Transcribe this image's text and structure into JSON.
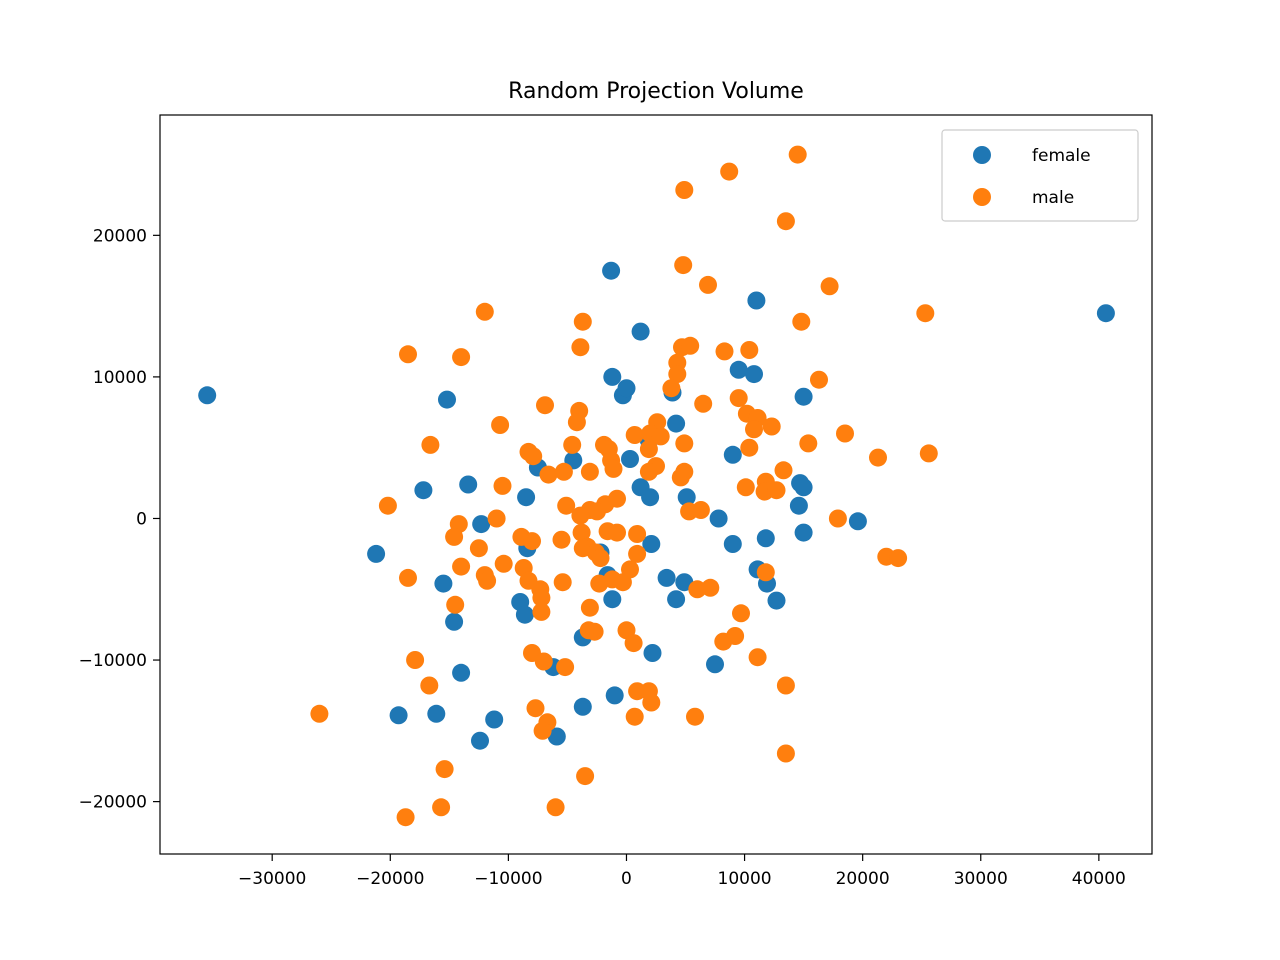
{
  "chart_data": {
    "type": "scatter",
    "title": "Random Projection Volume",
    "xlabel": "",
    "ylabel": "",
    "xlim": [
      -39500,
      44500
    ],
    "ylim": [
      -23700,
      28500
    ],
    "xticks": [
      -30000,
      -20000,
      -10000,
      0,
      10000,
      20000,
      30000,
      40000
    ],
    "xtick_labels": [
      "−30000",
      "−20000",
      "−10000",
      "0",
      "10000",
      "20000",
      "30000",
      "40000"
    ],
    "yticks": [
      -20000,
      -10000,
      0,
      10000,
      20000
    ],
    "ytick_labels": [
      "−20000",
      "−10000",
      "0",
      "10000",
      "20000"
    ],
    "grid": false,
    "legend_position": "top-right",
    "series": [
      {
        "name": "female",
        "color": "#1f77b4",
        "points": [
          [
            -35500,
            8700
          ],
          [
            40600,
            14500
          ],
          [
            -1300,
            17500
          ],
          [
            11000,
            15400
          ],
          [
            1200,
            13200
          ],
          [
            -1200,
            10000
          ],
          [
            -300,
            8700
          ],
          [
            0,
            9200
          ],
          [
            9500,
            10500
          ],
          [
            10800,
            10200
          ],
          [
            -15200,
            8400
          ],
          [
            15000,
            8600
          ],
          [
            4200,
            6700
          ],
          [
            3900,
            8900
          ],
          [
            -4500,
            4100
          ],
          [
            300,
            4200
          ],
          [
            -7500,
            3600
          ],
          [
            1900,
            5500
          ],
          [
            9000,
            4500
          ],
          [
            -13400,
            2400
          ],
          [
            -17200,
            2000
          ],
          [
            -8500,
            1500
          ],
          [
            1200,
            2200
          ],
          [
            2000,
            1500
          ],
          [
            5100,
            1500
          ],
          [
            14700,
            2500
          ],
          [
            15000,
            2200
          ],
          [
            14600,
            900
          ],
          [
            7800,
            0
          ],
          [
            19600,
            -200
          ],
          [
            -12300,
            -400
          ],
          [
            15000,
            -1000
          ],
          [
            11800,
            -1400
          ],
          [
            9000,
            -1800
          ],
          [
            2100,
            -1800
          ],
          [
            -21200,
            -2500
          ],
          [
            -8400,
            -2100
          ],
          [
            -2200,
            -2400
          ],
          [
            -1600,
            -4000
          ],
          [
            -15500,
            -4600
          ],
          [
            3400,
            -4200
          ],
          [
            4900,
            -4500
          ],
          [
            4200,
            -5700
          ],
          [
            -1200,
            -5700
          ],
          [
            11100,
            -3600
          ],
          [
            11900,
            -4600
          ],
          [
            12700,
            -5800
          ],
          [
            -9000,
            -5900
          ],
          [
            -8600,
            -6800
          ],
          [
            -14600,
            -7300
          ],
          [
            -3700,
            -8400
          ],
          [
            2200,
            -9500
          ],
          [
            7500,
            -10300
          ],
          [
            -6200,
            -10500
          ],
          [
            -14000,
            -10900
          ],
          [
            -1000,
            -12500
          ],
          [
            -3700,
            -13300
          ],
          [
            -16100,
            -13800
          ],
          [
            -19300,
            -13900
          ],
          [
            -11200,
            -14200
          ],
          [
            -12400,
            -15700
          ],
          [
            -5900,
            -15400
          ]
        ]
      },
      {
        "name": "male",
        "color": "#ff7f0e",
        "points": [
          [
            14500,
            25700
          ],
          [
            8700,
            24500
          ],
          [
            4900,
            23200
          ],
          [
            13500,
            21000
          ],
          [
            4800,
            17900
          ],
          [
            6900,
            16500
          ],
          [
            17200,
            16400
          ],
          [
            25300,
            14500
          ],
          [
            -12000,
            14600
          ],
          [
            -3700,
            13900
          ],
          [
            14800,
            13900
          ],
          [
            -3900,
            12100
          ],
          [
            4700,
            12100
          ],
          [
            5400,
            12200
          ],
          [
            8300,
            11800
          ],
          [
            10400,
            11900
          ],
          [
            -18500,
            11600
          ],
          [
            -14000,
            11400
          ],
          [
            4300,
            11000
          ],
          [
            4300,
            10200
          ],
          [
            16300,
            9800
          ],
          [
            3800,
            9200
          ],
          [
            9500,
            8500
          ],
          [
            6500,
            8100
          ],
          [
            -6900,
            8000
          ],
          [
            -4000,
            7600
          ],
          [
            10200,
            7400
          ],
          [
            11100,
            7100
          ],
          [
            -4200,
            6800
          ],
          [
            2600,
            6800
          ],
          [
            -10700,
            6600
          ],
          [
            12300,
            6500
          ],
          [
            10800,
            6300
          ],
          [
            2000,
            6000
          ],
          [
            700,
            5900
          ],
          [
            18500,
            6000
          ],
          [
            2900,
            5800
          ],
          [
            -16600,
            5200
          ],
          [
            -4600,
            5200
          ],
          [
            -1900,
            5200
          ],
          [
            -1500,
            4900
          ],
          [
            4900,
            5300
          ],
          [
            15400,
            5300
          ],
          [
            25600,
            4600
          ],
          [
            -8300,
            4700
          ],
          [
            -7900,
            4400
          ],
          [
            1900,
            4900
          ],
          [
            10400,
            5000
          ],
          [
            -1300,
            4100
          ],
          [
            21300,
            4300
          ],
          [
            2500,
            3700
          ],
          [
            -1100,
            3500
          ],
          [
            -6600,
            3100
          ],
          [
            -3100,
            3300
          ],
          [
            -5300,
            3300
          ],
          [
            1900,
            3300
          ],
          [
            13300,
            3400
          ],
          [
            4900,
            3300
          ],
          [
            11800,
            2600
          ],
          [
            4600,
            2900
          ],
          [
            -10500,
            2300
          ],
          [
            10100,
            2200
          ],
          [
            11700,
            1900
          ],
          [
            12700,
            2000
          ],
          [
            -800,
            1400
          ],
          [
            -20200,
            900
          ],
          [
            -5100,
            900
          ],
          [
            -1800,
            1000
          ],
          [
            -2500,
            500
          ],
          [
            -3100,
            600
          ],
          [
            -3900,
            200
          ],
          [
            5300,
            500
          ],
          [
            6300,
            600
          ],
          [
            17900,
            0
          ],
          [
            -11000,
            0
          ],
          [
            -14200,
            -400
          ],
          [
            -1600,
            -900
          ],
          [
            -3800,
            -1000
          ],
          [
            -8900,
            -1300
          ],
          [
            -14600,
            -1300
          ],
          [
            -800,
            -1000
          ],
          [
            900,
            -1100
          ],
          [
            -8000,
            -1600
          ],
          [
            -5500,
            -1500
          ],
          [
            -3300,
            -2000
          ],
          [
            -12500,
            -2100
          ],
          [
            -3700,
            -2100
          ],
          [
            -2600,
            -2400
          ],
          [
            -2200,
            -2800
          ],
          [
            900,
            -2500
          ],
          [
            22000,
            -2700
          ],
          [
            23000,
            -2800
          ],
          [
            -10400,
            -3200
          ],
          [
            -14000,
            -3400
          ],
          [
            300,
            -3600
          ],
          [
            -8700,
            -3500
          ],
          [
            -12000,
            -4000
          ],
          [
            11800,
            -3800
          ],
          [
            -18500,
            -4200
          ],
          [
            -11800,
            -4400
          ],
          [
            -8300,
            -4400
          ],
          [
            -5400,
            -4500
          ],
          [
            -2300,
            -4600
          ],
          [
            -1200,
            -4300
          ],
          [
            -300,
            -4500
          ],
          [
            -7300,
            -5000
          ],
          [
            6000,
            -5000
          ],
          [
            7100,
            -4900
          ],
          [
            -7200,
            -5600
          ],
          [
            -14500,
            -6100
          ],
          [
            -3100,
            -6300
          ],
          [
            -7200,
            -6600
          ],
          [
            9700,
            -6700
          ],
          [
            -3200,
            -7900
          ],
          [
            -2700,
            -8000
          ],
          [
            0,
            -7900
          ],
          [
            8200,
            -8700
          ],
          [
            9200,
            -8300
          ],
          [
            600,
            -8800
          ],
          [
            -8000,
            -9500
          ],
          [
            -7000,
            -10100
          ],
          [
            -17900,
            -10000
          ],
          [
            -5200,
            -10500
          ],
          [
            11100,
            -9800
          ],
          [
            -16700,
            -11800
          ],
          [
            13500,
            -11800
          ],
          [
            900,
            -12200
          ],
          [
            1900,
            -12200
          ],
          [
            2100,
            -13000
          ],
          [
            -26000,
            -13800
          ],
          [
            -7700,
            -13400
          ],
          [
            5800,
            -14000
          ],
          [
            700,
            -14000
          ],
          [
            -6700,
            -14400
          ],
          [
            -7100,
            -15000
          ],
          [
            13500,
            -16600
          ],
          [
            -15400,
            -17700
          ],
          [
            -3500,
            -18200
          ],
          [
            -15700,
            -20400
          ],
          [
            -6000,
            -20400
          ],
          [
            -18700,
            -21100
          ]
        ]
      }
    ]
  }
}
